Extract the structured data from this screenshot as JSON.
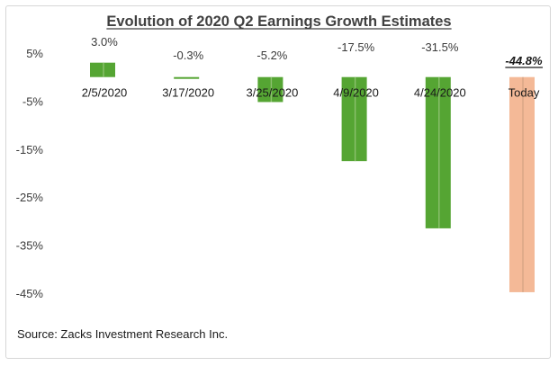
{
  "chart_data": {
    "type": "bar",
    "title": "Evolution of 2020 Q2 Earnings Growth Estimates",
    "categories": [
      "2/5/2020",
      "3/17/2020",
      "3/25/2020",
      "4/9/2020",
      "4/24/2020",
      "Today"
    ],
    "values": [
      3.0,
      -0.3,
      -5.2,
      -17.5,
      -31.5,
      -44.8
    ],
    "data_labels": [
      "3.0%",
      "-0.3%",
      "-5.2%",
      "-17.5%",
      "-31.5%",
      "-44.8%"
    ],
    "yticks": [
      5,
      -5,
      -15,
      -25,
      -35,
      -45
    ],
    "ytick_labels": [
      "5%",
      "-5%",
      "-15%",
      "-25%",
      "-35%",
      "-45%"
    ],
    "ylim": [
      -45,
      5
    ],
    "xlabel": "",
    "ylabel": "",
    "grid": false,
    "colors": {
      "bar": "#55a533",
      "bar_highlight": "#f4b997",
      "title": "#404040",
      "text": "#1a1a1a"
    },
    "source": "Source: Zacks Investment Research Inc."
  }
}
